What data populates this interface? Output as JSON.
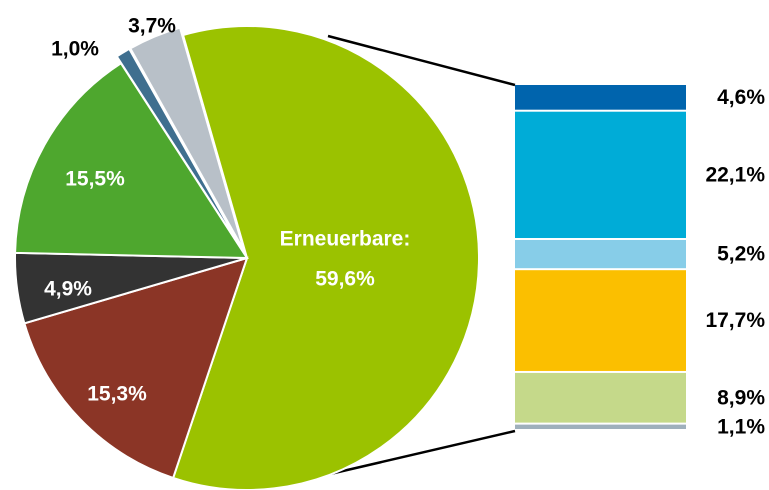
{
  "chart_data": [
    {
      "type": "pie",
      "categories": [
        "Erneuerbare:",
        null,
        null,
        null,
        null,
        null
      ],
      "values": [
        59.6,
        15.3,
        4.9,
        15.5,
        1.0,
        3.7
      ],
      "value_labels": [
        "59,6%",
        "15,3%",
        "4,9%",
        "15,5%",
        "1,0%",
        "3,7%"
      ],
      "colors": [
        "#9bc200",
        "#8b3526",
        "#333333",
        "#4ea72e",
        "#3f6f8f",
        "#b8c0c8"
      ]
    },
    {
      "type": "stacked-bar",
      "values": [
        4.6,
        22.1,
        5.2,
        17.7,
        8.9,
        1.1
      ],
      "value_labels": [
        "4,6%",
        "22,1%",
        "5,2%",
        "17,7%",
        "8,9%",
        "1,1%"
      ],
      "colors": [
        "#0064ad",
        "#00acd7",
        "#87cde8",
        "#fbbf00",
        "#c5d98a",
        "#9fb0bc"
      ]
    }
  ]
}
